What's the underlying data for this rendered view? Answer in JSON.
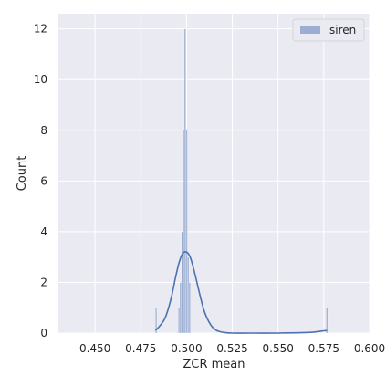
{
  "chart_data": {
    "type": "histogram",
    "title": "",
    "xlabel": "ZCR mean",
    "ylabel": "Count",
    "xlim": [
      0.43,
      0.6
    ],
    "ylim": [
      0,
      12.6
    ],
    "xticks": [
      0.45,
      0.475,
      0.5,
      0.525,
      0.55,
      0.575,
      0.6
    ],
    "xtick_labels": [
      "0.450",
      "0.475",
      "0.500",
      "0.525",
      "0.550",
      "0.575",
      "0.600"
    ],
    "yticks": [
      0,
      2,
      4,
      6,
      8,
      10,
      12
    ],
    "ytick_labels": [
      "0",
      "2",
      "4",
      "6",
      "8",
      "10",
      "12"
    ],
    "grid": true,
    "legend_position": "top-right",
    "legend": [
      "siren"
    ],
    "series": [
      {
        "name": "siren",
        "color": "#4c72b0",
        "bins": [
          {
            "x0": 0.483,
            "x1": 0.4838,
            "count": 1
          },
          {
            "x0": 0.4955,
            "x1": 0.4963,
            "count": 1
          },
          {
            "x0": 0.4963,
            "x1": 0.4972,
            "count": 2
          },
          {
            "x0": 0.4972,
            "x1": 0.498,
            "count": 4
          },
          {
            "x0": 0.498,
            "x1": 0.4988,
            "count": 8
          },
          {
            "x0": 0.4988,
            "x1": 0.4996,
            "count": 12
          },
          {
            "x0": 0.4996,
            "x1": 0.5005,
            "count": 8
          },
          {
            "x0": 0.5005,
            "x1": 0.5013,
            "count": 3
          },
          {
            "x0": 0.5013,
            "x1": 0.5021,
            "count": 2
          },
          {
            "x0": 0.5763,
            "x1": 0.5771,
            "count": 1
          }
        ],
        "kde": {
          "x": [
            0.483,
            0.485,
            0.488,
            0.49,
            0.492,
            0.494,
            0.496,
            0.498,
            0.5,
            0.502,
            0.504,
            0.506,
            0.508,
            0.51,
            0.513,
            0.516,
            0.52,
            0.525,
            0.535,
            0.55,
            0.56,
            0.568,
            0.572,
            0.575,
            0.5767
          ],
          "y": [
            0.1,
            0.25,
            0.55,
            0.95,
            1.5,
            2.2,
            2.8,
            3.15,
            3.2,
            3.0,
            2.5,
            1.9,
            1.3,
            0.8,
            0.35,
            0.12,
            0.03,
            0.0,
            0.0,
            0.0,
            0.01,
            0.03,
            0.06,
            0.09,
            0.1
          ]
        }
      }
    ]
  }
}
